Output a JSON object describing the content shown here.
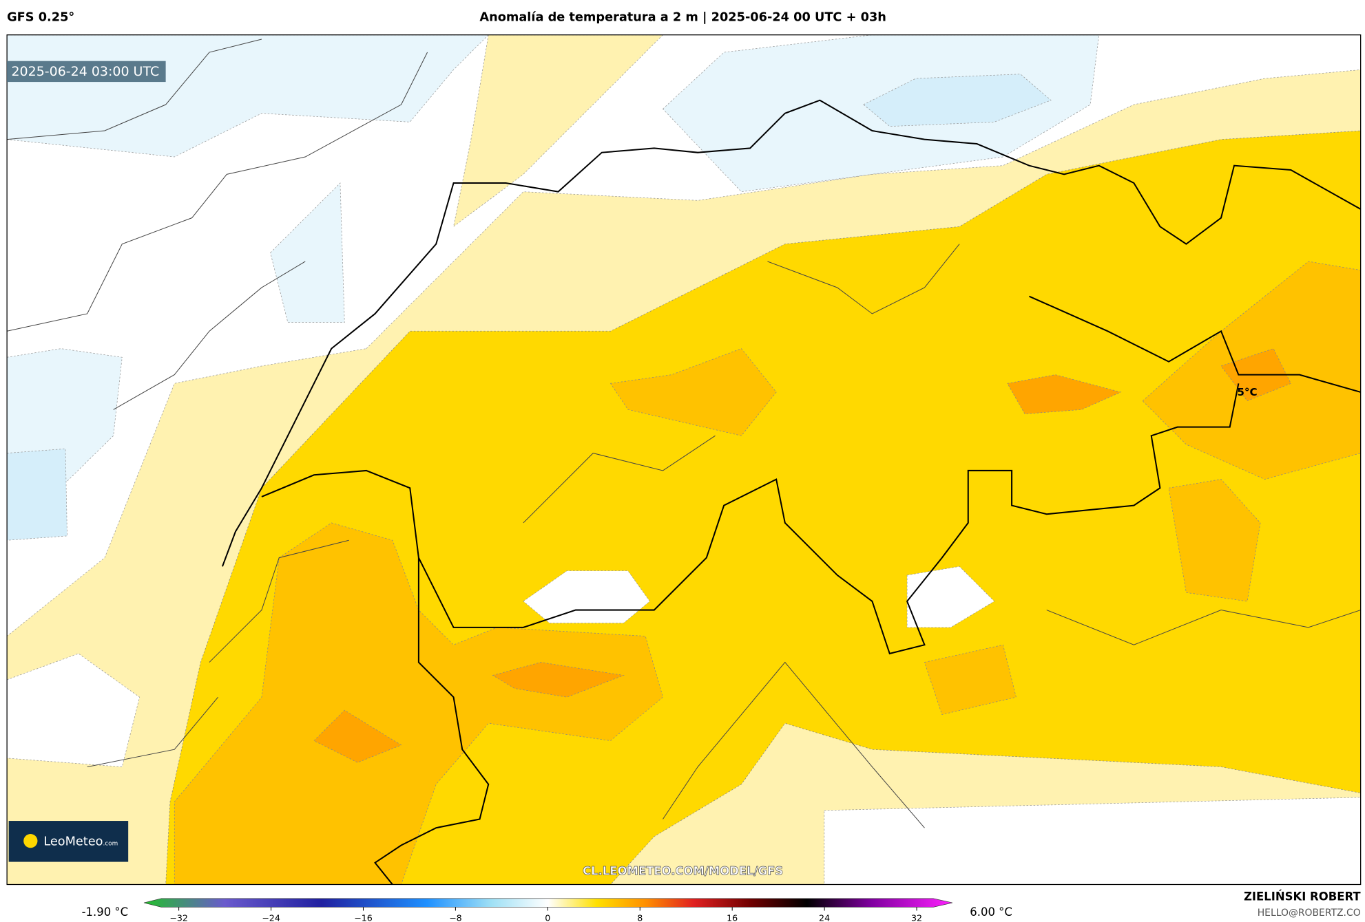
{
  "header": {
    "model": "GFS 0.25°",
    "title": "Anomalía de temperatura a 2 m | 2025-06-24 00 UTC + 03h"
  },
  "map": {
    "valid_time": "2025-06-24 03:00 UTC",
    "contour_label": "5°C",
    "logo": {
      "name": "LeoMeteo",
      "suffix": ".com"
    },
    "watermark": "CL.LEOMETEO.COM/MODEL/GFS"
  },
  "colorbar": {
    "min_label": "-1.90 °C",
    "max_label": "6.00 °C",
    "ticks": [
      {
        "value": -32,
        "label": "−32"
      },
      {
        "value": -24,
        "label": "−24"
      },
      {
        "value": -16,
        "label": "−16"
      },
      {
        "value": -8,
        "label": "−8"
      },
      0,
      8,
      16,
      24,
      32
    ]
  },
  "credits": {
    "author": "ZIELIŃSKI ROBERT",
    "email": "HELLO@ROBERTZ.CO"
  }
}
